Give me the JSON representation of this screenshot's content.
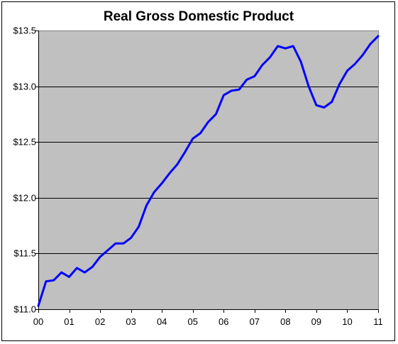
{
  "chart_data": {
    "type": "line",
    "title": "Real Gross Domestic Product",
    "xlabel": "",
    "ylabel": "",
    "x_tick_labels": [
      "00",
      "01",
      "02",
      "03",
      "04",
      "05",
      "06",
      "07",
      "08",
      "09",
      "10",
      "11"
    ],
    "y_tick_labels": [
      "$11.0",
      "$11.5",
      "$12.0",
      "$12.5",
      "$13.0",
      "$13.5"
    ],
    "y_ticks": [
      11.0,
      11.5,
      12.0,
      12.5,
      13.0,
      13.5
    ],
    "ylim": [
      11.0,
      13.5
    ],
    "xlim": [
      0,
      11.0
    ],
    "grid": "horizontal",
    "plot_background": "#c0c0c0",
    "series": [
      {
        "color": "#0000ff",
        "x": [
          0.0,
          0.25,
          0.5,
          0.75,
          1.0,
          1.25,
          1.5,
          1.75,
          2.0,
          2.25,
          2.5,
          2.75,
          3.0,
          3.25,
          3.5,
          3.75,
          4.0,
          4.25,
          4.5,
          4.75,
          5.0,
          5.25,
          5.5,
          5.75,
          6.0,
          6.25,
          6.5,
          6.75,
          7.0,
          7.25,
          7.5,
          7.75,
          8.0,
          8.25,
          8.5,
          8.75,
          9.0,
          9.25,
          9.5,
          9.75,
          10.0,
          10.25,
          10.5,
          10.75,
          11.0
        ],
        "values": [
          11.03,
          11.25,
          11.26,
          11.33,
          11.29,
          11.37,
          11.33,
          11.38,
          11.47,
          11.53,
          11.59,
          11.59,
          11.64,
          11.74,
          11.93,
          12.05,
          12.13,
          12.22,
          12.3,
          12.41,
          12.53,
          12.58,
          12.68,
          12.75,
          12.92,
          12.96,
          12.97,
          13.06,
          13.09,
          13.19,
          13.26,
          13.36,
          13.34,
          13.36,
          13.22,
          13.0,
          12.83,
          12.81,
          12.86,
          13.02,
          13.14,
          13.2,
          13.28,
          13.38,
          13.45
        ]
      }
    ]
  }
}
